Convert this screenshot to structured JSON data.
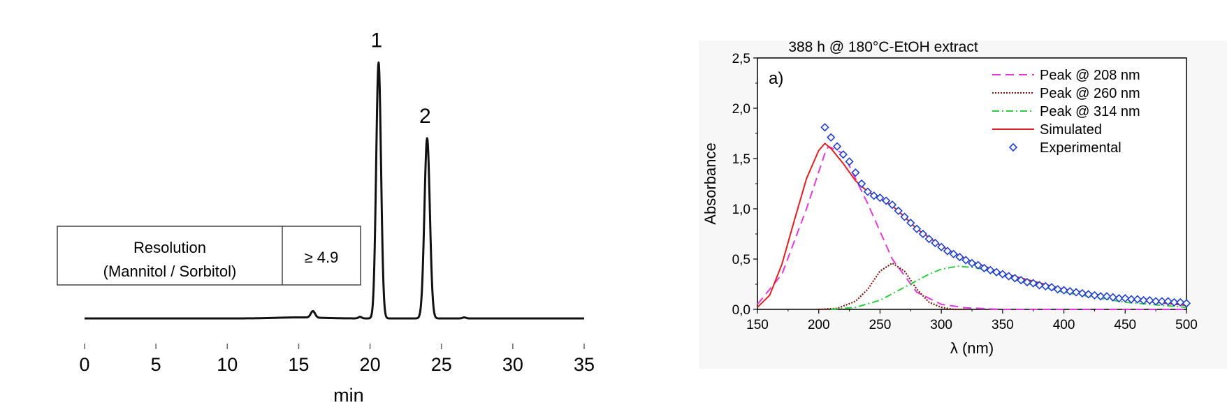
{
  "chart_data": [
    {
      "type": "line",
      "title": "",
      "xlabel": "min",
      "ylabel": "",
      "xlim": [
        0,
        35
      ],
      "x_ticks": [
        "0",
        "5",
        "10",
        "15",
        "20",
        "25",
        "30",
        "35"
      ],
      "grid": false,
      "peaks": [
        {
          "label": "1",
          "x": 20.6,
          "height": 0.98,
          "width": 0.17
        },
        {
          "label": "2",
          "x": 24.0,
          "height": 0.69,
          "width": 0.19
        },
        {
          "label": "",
          "x": 16.0,
          "height": 0.025,
          "width": 0.15
        },
        {
          "label": "",
          "x": 19.3,
          "height": 0.006,
          "width": 0.12
        },
        {
          "label": "",
          "x": 26.6,
          "height": 0.004,
          "width": 0.12
        }
      ],
      "table": {
        "header_line1": "Resolution",
        "header_line2": "(Mannitol / Sorbitol)",
        "value": "≥ 4.9"
      },
      "series": [
        {
          "color": "#111111"
        }
      ]
    },
    {
      "type": "line",
      "panel_label": "a)",
      "title": "388 h @ 180°C-EtOH extract",
      "xlabel": "λ (nm)",
      "ylabel": "Absorbance",
      "xlim": [
        150,
        500
      ],
      "ylim": [
        0,
        2.5
      ],
      "x_ticks": [
        "150",
        "200",
        "250",
        "300",
        "350",
        "400",
        "450",
        "500"
      ],
      "y_ticks": [
        "0,0",
        "0,5",
        "1,0",
        "1,5",
        "2,0",
        "2,5"
      ],
      "grid": false,
      "legend_position": "top-right",
      "series": [
        {
          "name": "Peak @ 208 nm",
          "style": "dashed",
          "color": "#e23ad9",
          "x": [
            150,
            170,
            190,
            205,
            208,
            220,
            240,
            260,
            280,
            300,
            320,
            350,
            400,
            450,
            500
          ],
          "y": [
            0.05,
            0.35,
            1.0,
            1.55,
            1.62,
            1.55,
            1.05,
            0.5,
            0.17,
            0.05,
            0.015,
            0.0,
            0.0,
            0.0,
            0.0
          ]
        },
        {
          "name": "Peak @ 260 nm",
          "style": "dotted",
          "color": "#7a1a10",
          "x": [
            200,
            215,
            230,
            240,
            250,
            260,
            270,
            280,
            290,
            300,
            310,
            320
          ],
          "y": [
            0.0,
            0.01,
            0.08,
            0.2,
            0.38,
            0.46,
            0.38,
            0.2,
            0.07,
            0.02,
            0.0,
            0.0
          ]
        },
        {
          "name": "Peak @ 314 nm",
          "style": "dashdot",
          "color": "#2ecc40",
          "x": [
            210,
            230,
            250,
            270,
            290,
            300,
            314,
            330,
            350,
            370,
            400,
            450,
            500
          ],
          "y": [
            0.0,
            0.02,
            0.09,
            0.22,
            0.35,
            0.4,
            0.43,
            0.41,
            0.34,
            0.26,
            0.17,
            0.07,
            0.02
          ]
        },
        {
          "name": "Simulated",
          "style": "solid",
          "color": "#e02020",
          "x": [
            150,
            160,
            170,
            180,
            190,
            200,
            205,
            210,
            220,
            230,
            240,
            250,
            260,
            270,
            280,
            300,
            320,
            350,
            400,
            450,
            500
          ],
          "y": [
            0.02,
            0.14,
            0.45,
            0.88,
            1.3,
            1.58,
            1.65,
            1.6,
            1.45,
            1.28,
            1.17,
            1.1,
            1.03,
            0.92,
            0.8,
            0.63,
            0.5,
            0.36,
            0.2,
            0.1,
            0.04
          ]
        },
        {
          "name": "Experimental",
          "style": "marker-diamond",
          "color": "#2040d0",
          "x": [
            205,
            210,
            215,
            220,
            225,
            230,
            235,
            240,
            245,
            250,
            255,
            260,
            265,
            270,
            275,
            280,
            285,
            290,
            295,
            300,
            305,
            310,
            315,
            320,
            325,
            330,
            335,
            340,
            345,
            350,
            355,
            360,
            365,
            370,
            375,
            380,
            385,
            390,
            395,
            400,
            405,
            410,
            415,
            420,
            425,
            430,
            435,
            440,
            445,
            450,
            455,
            460,
            465,
            470,
            475,
            480,
            485,
            490,
            495,
            500
          ],
          "y": [
            1.81,
            1.71,
            1.62,
            1.54,
            1.47,
            1.36,
            1.25,
            1.17,
            1.13,
            1.11,
            1.08,
            1.04,
            0.98,
            0.92,
            0.86,
            0.8,
            0.75,
            0.7,
            0.66,
            0.62,
            0.58,
            0.55,
            0.52,
            0.49,
            0.46,
            0.44,
            0.41,
            0.39,
            0.37,
            0.35,
            0.33,
            0.31,
            0.29,
            0.27,
            0.26,
            0.24,
            0.23,
            0.22,
            0.2,
            0.19,
            0.18,
            0.17,
            0.16,
            0.15,
            0.14,
            0.13,
            0.13,
            0.12,
            0.11,
            0.11,
            0.1,
            0.1,
            0.09,
            0.09,
            0.08,
            0.08,
            0.08,
            0.07,
            0.07,
            0.06
          ]
        }
      ]
    }
  ]
}
